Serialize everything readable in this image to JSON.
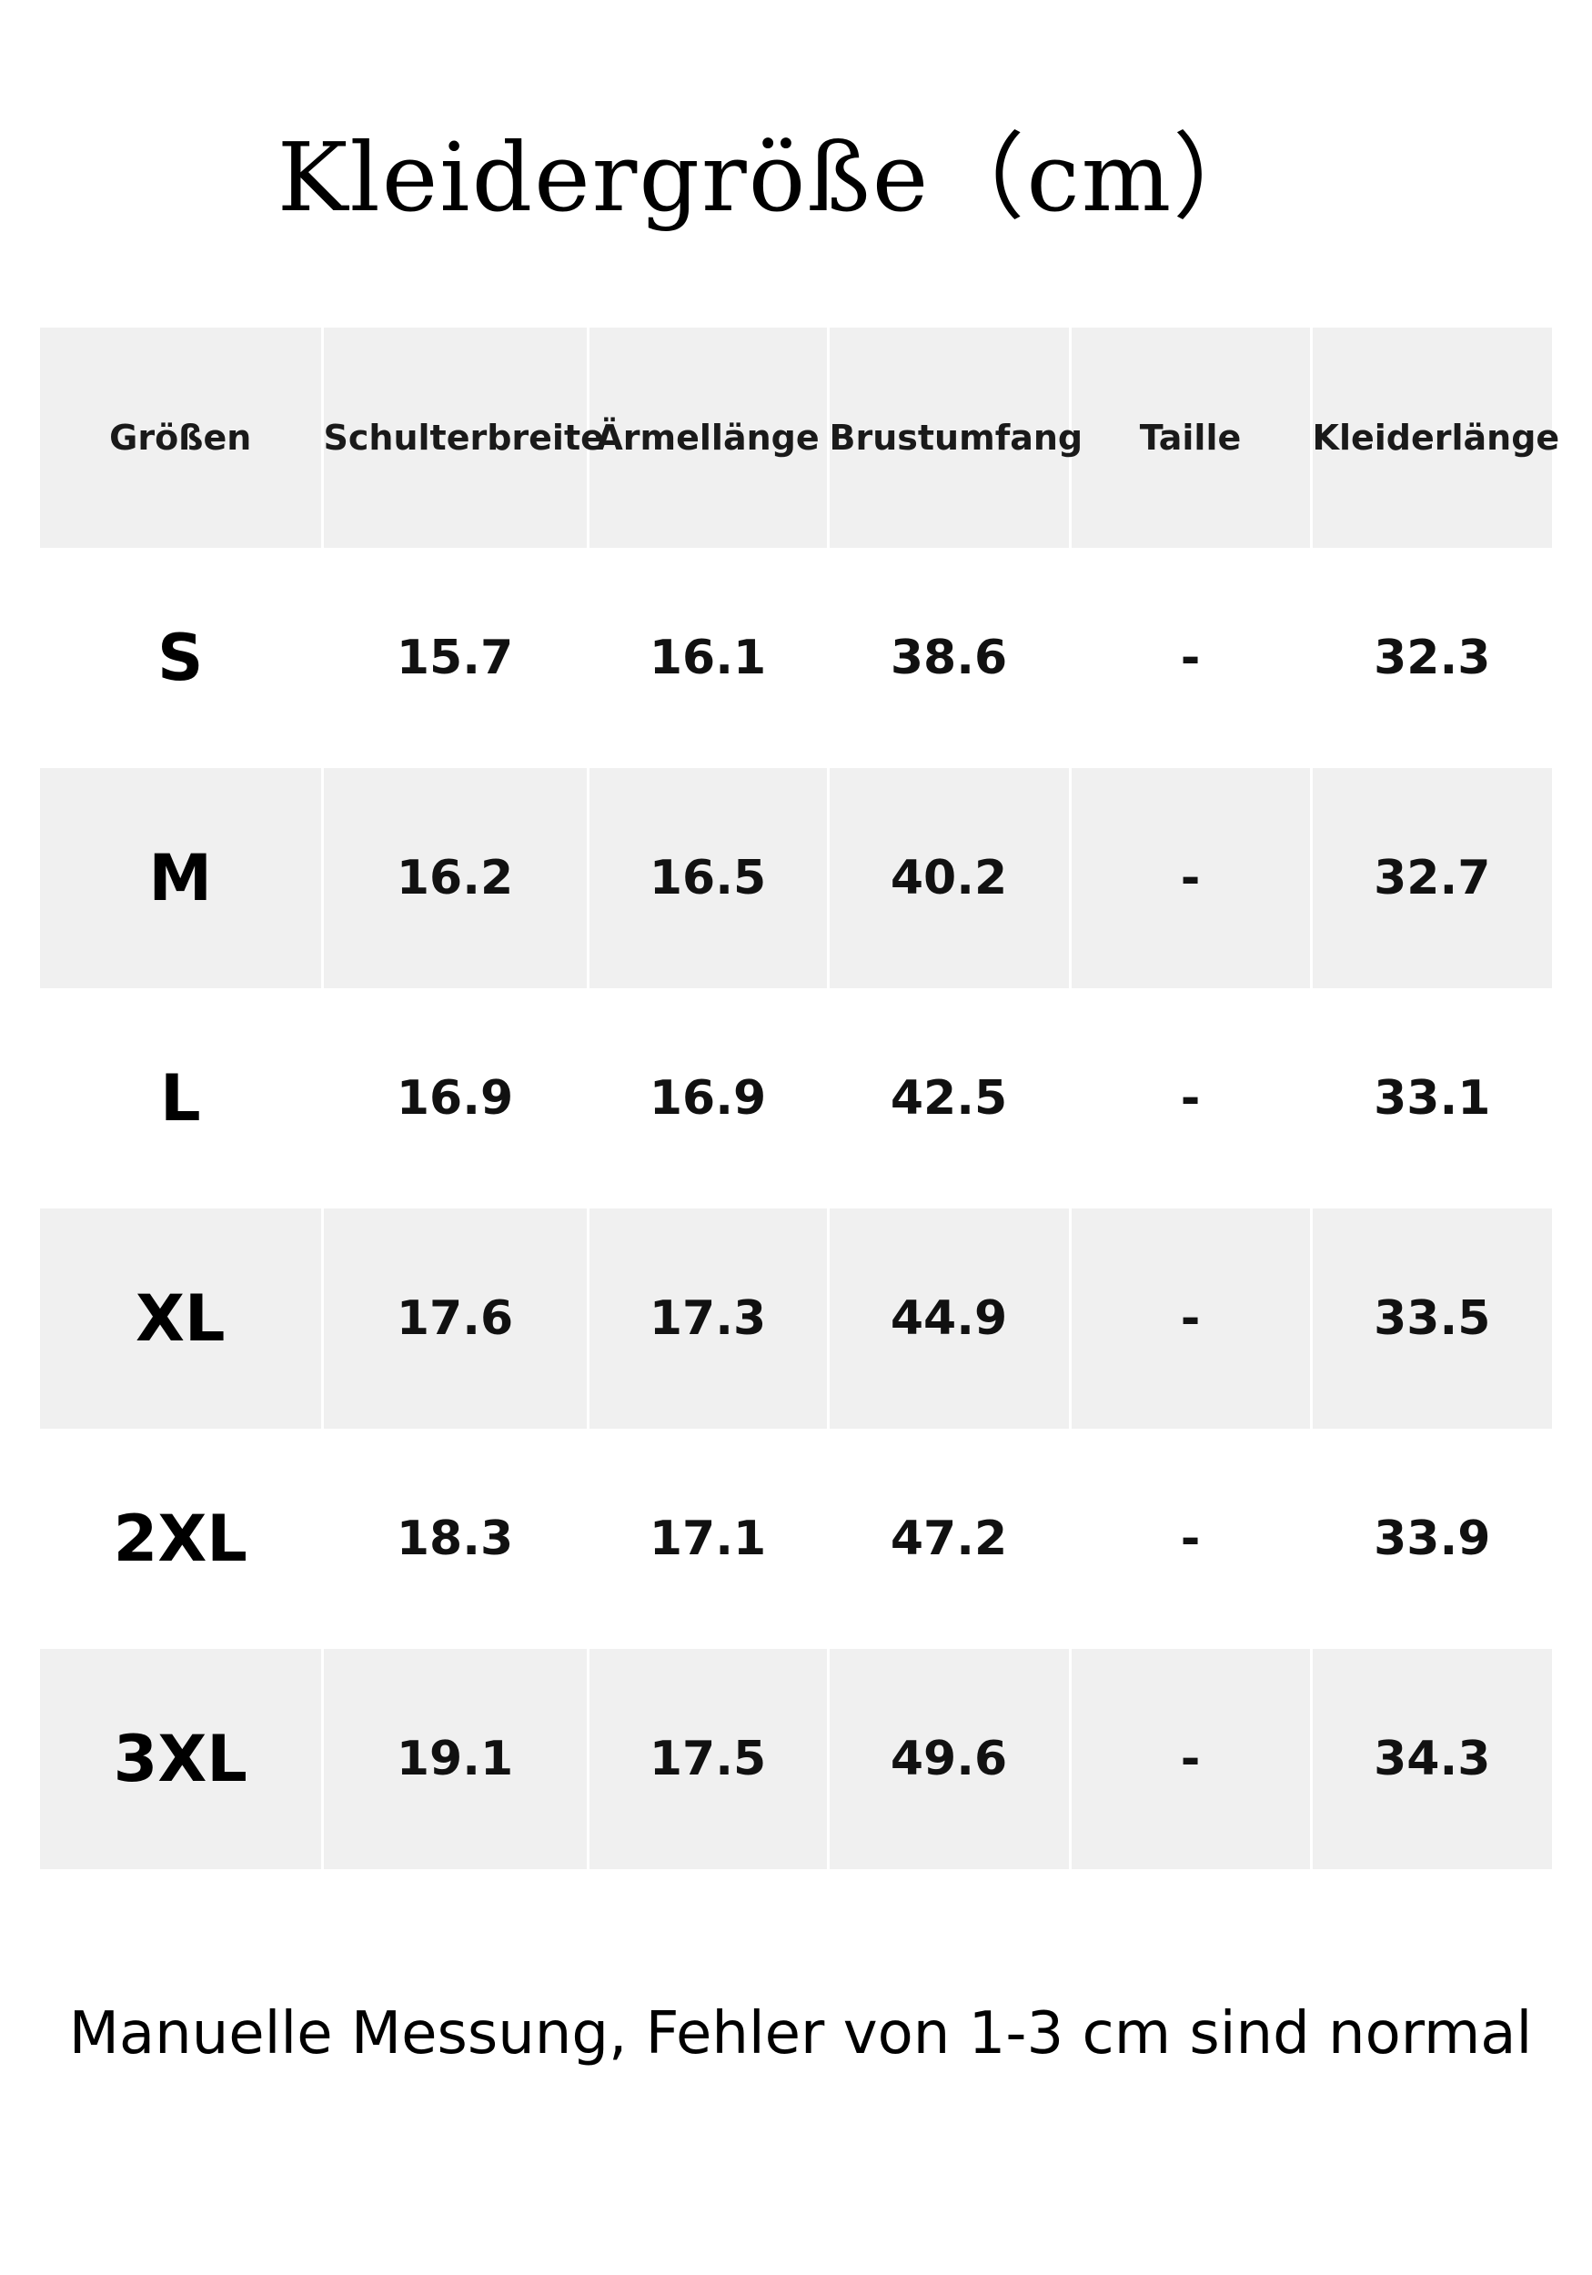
{
  "title": "Kleidergröße（cm）",
  "table": {
    "headers": [
      "Größen",
      "Schulterbreite",
      "Ärmellänge",
      "Brustumfang",
      "Taille",
      "Kleiderlänge"
    ],
    "rows": [
      {
        "size": "S",
        "schulterbreite": "15.7",
        "aermellaenge": "16.1",
        "brustumfang": "38.6",
        "taille": "-",
        "kleiderlaenge": "32.3"
      },
      {
        "size": "M",
        "schulterbreite": "16.2",
        "aermellaenge": "16.5",
        "brustumfang": "40.2",
        "taille": "-",
        "kleiderlaenge": "32.7"
      },
      {
        "size": "L",
        "schulterbreite": "16.9",
        "aermellaenge": "16.9",
        "brustumfang": "42.5",
        "taille": "-",
        "kleiderlaenge": "33.1"
      },
      {
        "size": "XL",
        "schulterbreite": "17.6",
        "aermellaenge": "17.3",
        "brustumfang": "44.9",
        "taille": "-",
        "kleiderlaenge": "33.5"
      },
      {
        "size": "2XL",
        "schulterbreite": "18.3",
        "aermellaenge": "17.1",
        "brustumfang": "47.2",
        "taille": "-",
        "kleiderlaenge": "33.9"
      },
      {
        "size": "3XL",
        "schulterbreite": "19.1",
        "aermellaenge": "17.5",
        "brustumfang": "49.6",
        "taille": "-",
        "kleiderlaenge": "34.3"
      }
    ]
  },
  "footnote": "Manuelle Messung, Fehler von 1-3 cm sind normal",
  "colors": {
    "row_shade": "#f0f0f0",
    "background": "#ffffff",
    "text": "#000000"
  }
}
